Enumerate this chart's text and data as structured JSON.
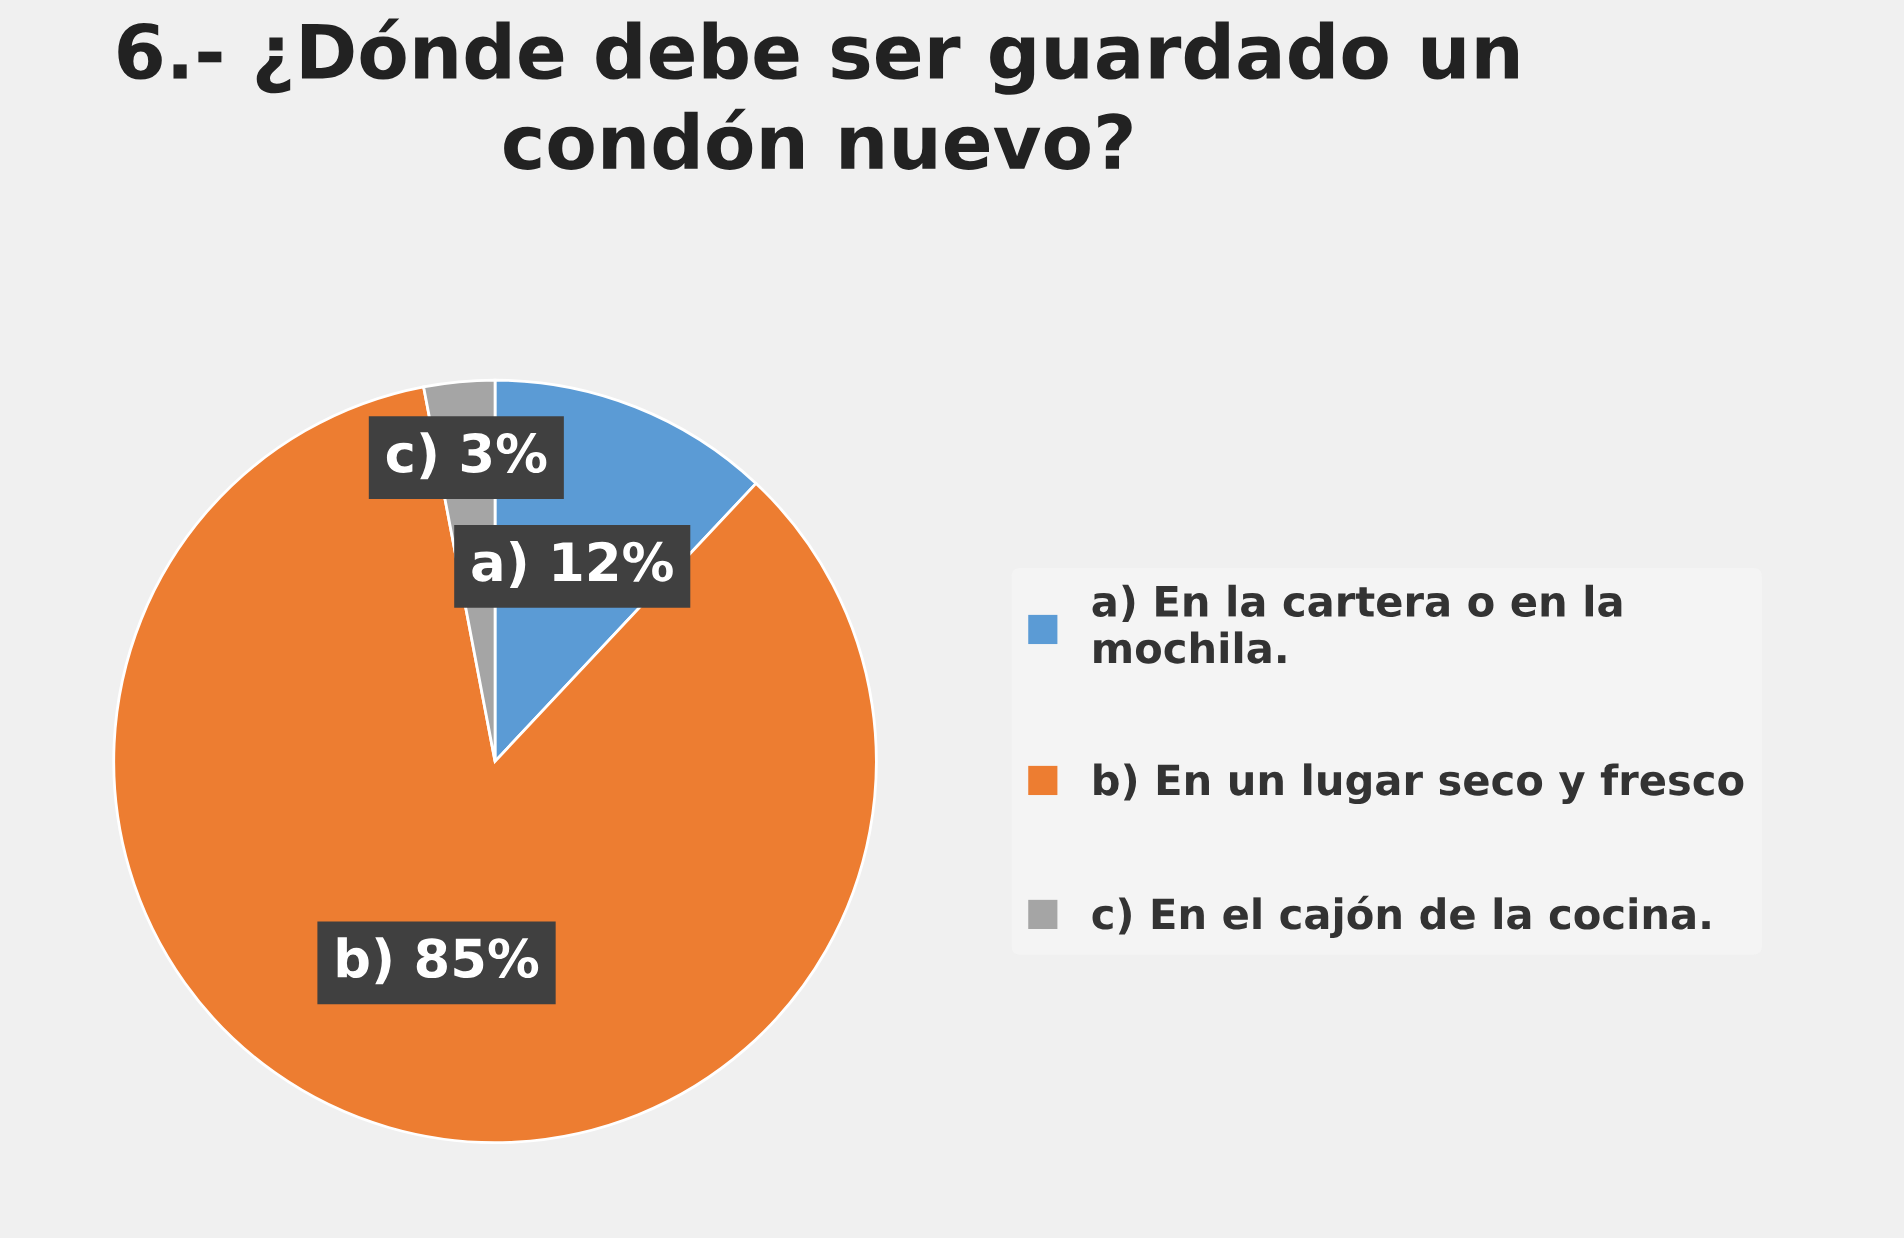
{
  "chart_data": {
    "type": "pie",
    "title": "6.- ¿Dónde debe ser guardado un\ncondón nuevo?",
    "categories": [
      "a) En la cartera o en la mochila.",
      "b) En un lugar seco y fresco",
      "c) En el cajón de la cocina."
    ],
    "values": [
      12,
      85,
      3
    ],
    "colors": [
      "#5b9bd5",
      "#ed7d31",
      "#a5a5a5"
    ],
    "value_labels": [
      "a) 12%",
      "b) 85%",
      "c) 3%"
    ],
    "legend": "right"
  }
}
